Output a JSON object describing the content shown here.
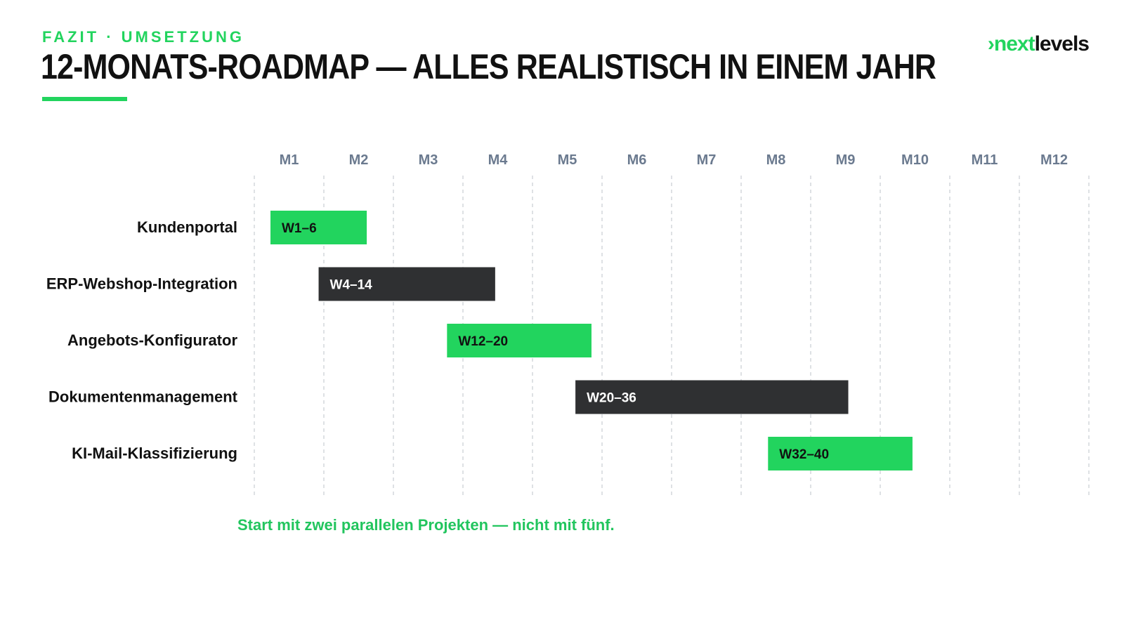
{
  "header": {
    "eyebrow": "FAZIT · UMSETZUNG",
    "title": "12-MONATS-ROADMAP — ALLES REALISTISCH IN EINEM JAHR"
  },
  "logo": {
    "chevron": "›",
    "part1": "next",
    "part2": "levels"
  },
  "colors": {
    "accent": "#22d45e",
    "dark": "#2f3032",
    "month_label": "#6b7a8f",
    "gridline": "#c9cdd3"
  },
  "chart_data": {
    "type": "gantt",
    "months": [
      "M1",
      "M2",
      "M3",
      "M4",
      "M5",
      "M6",
      "M7",
      "M8",
      "M9",
      "M10",
      "M11",
      "M12"
    ],
    "tasks": [
      {
        "name": "Kundenportal",
        "label": "W1–6",
        "start_week": 1,
        "end_week": 6,
        "style": "accent"
      },
      {
        "name": "ERP-Webshop-Integration",
        "label": "W4–14",
        "start_week": 4,
        "end_week": 14,
        "style": "dark"
      },
      {
        "name": "Angebots-Konfigurator",
        "label": "W12–20",
        "start_week": 12,
        "end_week": 20,
        "style": "accent"
      },
      {
        "name": "Dokumentenmanagement",
        "label": "W20–36",
        "start_week": 20,
        "end_week": 36,
        "style": "dark"
      },
      {
        "name": "KI-Mail-Klassifizierung",
        "label": "W32–40",
        "start_week": 32,
        "end_week": 40,
        "style": "accent"
      }
    ]
  },
  "caption": "Start mit zwei parallelen Projekten — nicht mit fünf."
}
